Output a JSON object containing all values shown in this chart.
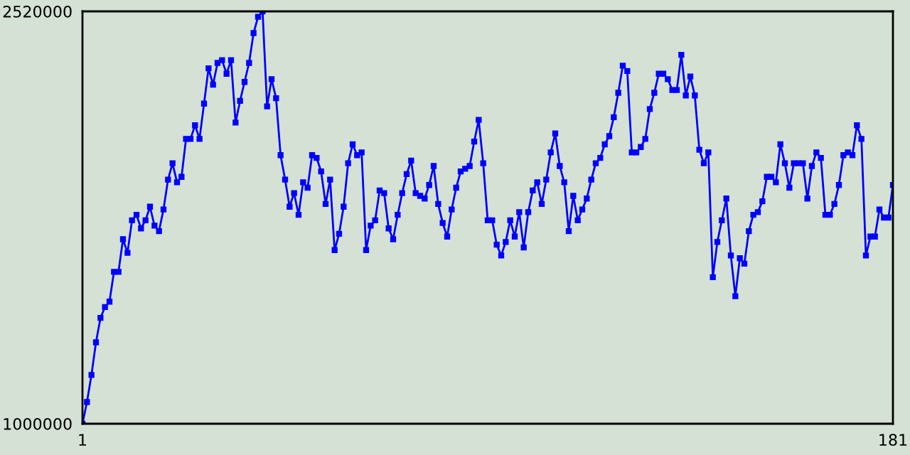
{
  "chart_data": {
    "type": "line",
    "x": [
      1,
      2,
      3,
      4,
      5,
      6,
      7,
      8,
      9,
      10,
      11,
      12,
      13,
      14,
      15,
      16,
      17,
      18,
      19,
      20,
      21,
      22,
      23,
      24,
      25,
      26,
      27,
      28,
      29,
      30,
      31,
      32,
      33,
      34,
      35,
      36,
      37,
      38,
      39,
      40,
      41,
      42,
      43,
      44,
      45,
      46,
      47,
      48,
      49,
      50,
      51,
      52,
      53,
      54,
      55,
      56,
      57,
      58,
      59,
      60,
      61,
      62,
      63,
      64,
      65,
      66,
      67,
      68,
      69,
      70,
      71,
      72,
      73,
      74,
      75,
      76,
      77,
      78,
      79,
      80,
      81,
      82,
      83,
      84,
      85,
      86,
      87,
      88,
      89,
      90,
      91,
      92,
      93,
      94,
      95,
      96,
      97,
      98,
      99,
      100,
      101,
      102,
      103,
      104,
      105,
      106,
      107,
      108,
      109,
      110,
      111,
      112,
      113,
      114,
      115,
      116,
      117,
      118,
      119,
      120,
      121,
      122,
      123,
      124,
      125,
      126,
      127,
      128,
      129,
      130,
      131,
      132,
      133,
      134,
      135,
      136,
      137,
      138,
      139,
      140,
      141,
      142,
      143,
      144,
      145,
      146,
      147,
      148,
      149,
      150,
      151,
      152,
      153,
      154,
      155,
      156,
      157,
      158,
      159,
      160,
      161,
      162,
      163,
      164,
      165,
      166,
      167,
      168,
      169,
      170,
      171,
      172,
      173,
      174,
      175,
      176,
      177,
      178,
      179,
      180,
      181
    ],
    "series": [
      {
        "color": "#0000ff",
        "values": [
          1000000,
          1080000,
          1180000,
          1300000,
          1390000,
          1430000,
          1450000,
          1560000,
          1560000,
          1680000,
          1630000,
          1750000,
          1770000,
          1720000,
          1750000,
          1800000,
          1730000,
          1710000,
          1790000,
          1900000,
          1960000,
          1890000,
          1910000,
          2050000,
          2050000,
          2100000,
          2050000,
          2180000,
          2310000,
          2250000,
          2330000,
          2340000,
          2290000,
          2340000,
          2110000,
          2190000,
          2260000,
          2330000,
          2440000,
          2500000,
          2520000,
          2170000,
          2270000,
          2200000,
          1990000,
          1900000,
          1800000,
          1850000,
          1770000,
          1890000,
          1870000,
          1990000,
          1980000,
          1930000,
          1810000,
          1900000,
          1640000,
          1700000,
          1800000,
          1960000,
          2030000,
          1990000,
          2000000,
          1640000,
          1730000,
          1750000,
          1860000,
          1850000,
          1720000,
          1680000,
          1770000,
          1850000,
          1920000,
          1970000,
          1850000,
          1840000,
          1830000,
          1880000,
          1950000,
          1810000,
          1740000,
          1690000,
          1790000,
          1870000,
          1930000,
          1940000,
          1950000,
          2040000,
          2120000,
          1960000,
          1750000,
          1750000,
          1660000,
          1620000,
          1670000,
          1750000,
          1690000,
          1780000,
          1650000,
          1780000,
          1860000,
          1890000,
          1810000,
          1900000,
          2000000,
          2070000,
          1950000,
          1890000,
          1710000,
          1840000,
          1750000,
          1790000,
          1830000,
          1900000,
          1960000,
          1980000,
          2030000,
          2060000,
          2130000,
          2220000,
          2320000,
          2300000,
          2000000,
          2000000,
          2020000,
          2050000,
          2160000,
          2220000,
          2290000,
          2290000,
          2270000,
          2230000,
          2230000,
          2360000,
          2210000,
          2280000,
          2210000,
          2010000,
          1960000,
          2000000,
          1540000,
          1670000,
          1750000,
          1830000,
          1620000,
          1470000,
          1610000,
          1590000,
          1710000,
          1770000,
          1780000,
          1820000,
          1910000,
          1910000,
          1890000,
          2030000,
          1960000,
          1870000,
          1960000,
          1960000,
          1960000,
          1830000,
          1950000,
          2000000,
          1980000,
          1770000,
          1770000,
          1810000,
          1880000,
          1990000,
          2000000,
          1990000,
          2100000,
          2050000,
          1620000,
          1690000,
          1690000,
          1790000,
          1760000,
          1760000,
          1880000
        ]
      }
    ],
    "xlim": [
      1,
      181
    ],
    "ylim": [
      1000000,
      2520000
    ],
    "xticks": [
      1,
      181
    ],
    "yticks": [
      1000000,
      2520000
    ],
    "legend": false,
    "marker": "square",
    "line_style": "solid"
  }
}
